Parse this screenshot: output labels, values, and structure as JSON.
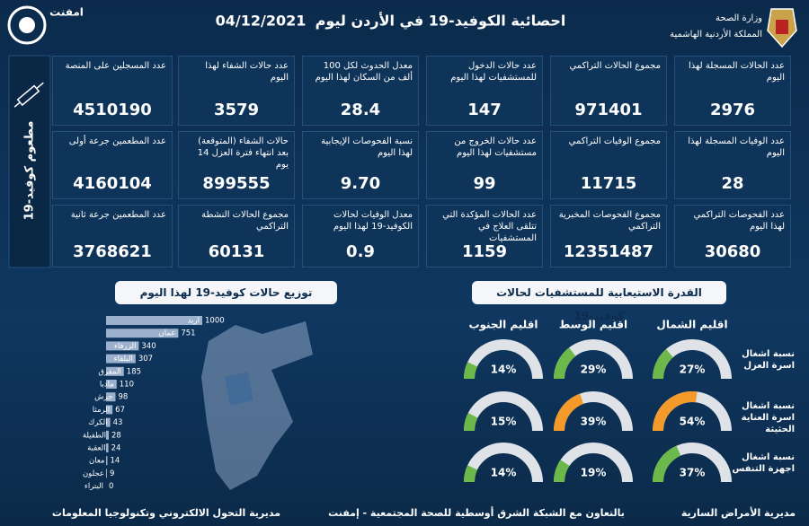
{
  "header": {
    "title": "احصائية الكوفيد-19 في الأردن ليوم",
    "date": "04/12/2021",
    "ministry": "وزارة الصحة",
    "kingdom": "المملكة الأردنية الهاشمية",
    "brand": "امفنت"
  },
  "stats": {
    "rows": [
      [
        {
          "label": "عدد الحالات المسجلة لهذا اليوم",
          "value": "2976"
        },
        {
          "label": "مجموع الحالات التراكمي",
          "value": "971401"
        },
        {
          "label": "عدد حالات الدخول للمستشفيات لهذا اليوم",
          "value": "147"
        },
        {
          "label": "معدل الحدوث لكل 100 ألف من السكان لهذا اليوم",
          "value": "28.4"
        },
        {
          "label": "عدد حالات الشفاء لهذا اليوم",
          "value": "3579"
        }
      ],
      [
        {
          "label": "عدد الوفيات المسجلة لهذا اليوم",
          "value": "28"
        },
        {
          "label": "مجموع الوفيات التراكمي",
          "value": "11715"
        },
        {
          "label": "عدد حالات الخروج من مستشفيات لهذا اليوم",
          "value": "99"
        },
        {
          "label": "نسبة الفحوصات الإيجابية لهذا اليوم",
          "value": "9.70"
        },
        {
          "label": "حالات الشفاء (المتوقعة) بعد انتهاء فترة العزل 14 يوم",
          "value": "899555"
        }
      ],
      [
        {
          "label": "عدد الفحوصات التراكمي لهذا اليوم",
          "value": "30680"
        },
        {
          "label": "مجموع الفحوصات المخبرية التراكمي",
          "value": "12351487"
        },
        {
          "label": "عدد الحالات المؤكدة التي تتلقى العلاج في المستشفيات",
          "value": "1159"
        },
        {
          "label": "معدل الوفيات لحالات الكوفيد-19 لهذا اليوم",
          "value": "0.9"
        },
        {
          "label": "مجموع الحالات النشطة التراكمي",
          "value": "60131"
        }
      ]
    ]
  },
  "vaccination": {
    "title": "مطعوم كوفيد-19",
    "tiles": [
      {
        "label": "عدد المسجلين على المنصة",
        "value": "4510190"
      },
      {
        "label": "عدد المطعمين جرعة أولى",
        "value": "4160104"
      },
      {
        "label": "عدد المطعمين جرعة ثانية",
        "value": "3768621"
      }
    ]
  },
  "chart_data": {
    "type": "bar",
    "orientation": "horizontal",
    "title": "توزيع حالات كوفيد-19 لهذا اليوم",
    "categories": [
      "اربد",
      "عمان",
      "الزرقاء",
      "البلقاء",
      "المفرق",
      "مادبا",
      "جرش",
      "الرمثا",
      "الكرك",
      "الطفيلة",
      "العقبة",
      "معان",
      "عجلون",
      "البتراء"
    ],
    "values": [
      1000,
      751,
      340,
      307,
      185,
      110,
      98,
      67,
      43,
      28,
      24,
      14,
      9,
      0
    ],
    "color": "#9bb0cc"
  },
  "capacity": {
    "title": "القدرة الاستيعابية للمستشفيات لحالات كوفيد-19",
    "regions": [
      "اقليم الشمال",
      "اقليم الوسط",
      "اقليم الجنوب"
    ],
    "rows": [
      {
        "label": "نسبة اشغال اسرة العزل",
        "values": [
          27,
          29,
          14
        ],
        "value_labels": [
          "27%",
          "29%",
          "14%"
        ],
        "colors": [
          "#6cb84a",
          "#6cb84a",
          "#6cb84a"
        ]
      },
      {
        "label": "نسبة اشغال اسرة العناية الحثيثة",
        "values": [
          54,
          39,
          15
        ],
        "value_labels": [
          "54%",
          "39%",
          "15%"
        ],
        "colors": [
          "#f39a2b",
          "#f39a2b",
          "#6cb84a"
        ]
      },
      {
        "label": "نسبة اشغال اجهزة التنفس",
        "values": [
          37,
          19,
          14
        ],
        "value_labels": [
          "37%",
          "19%",
          "14%"
        ],
        "colors": [
          "#6cb84a",
          "#6cb84a",
          "#6cb84a"
        ]
      }
    ]
  },
  "footer": {
    "left": "مديرية التحول الالكتروني وتكنولوجيا المعلومات",
    "center": "بالتعاون مع الشبكة الشرق أوسطية للصحة المجتمعية - إمفنت",
    "right": "مديرية الأمراض السارية"
  }
}
